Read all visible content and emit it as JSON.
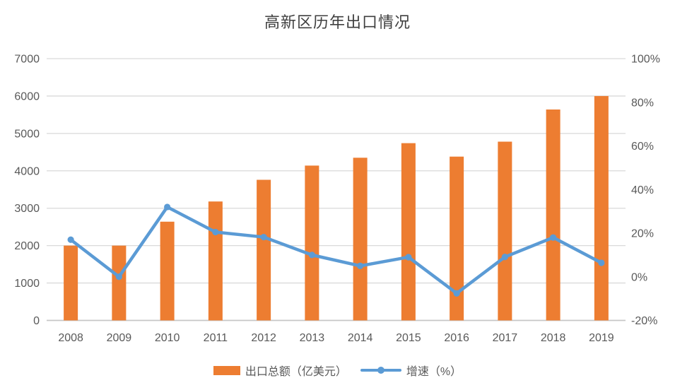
{
  "chart_data": {
    "type": "combo",
    "title": "高新区历年出口情况",
    "categories": [
      "2008",
      "2009",
      "2010",
      "2011",
      "2012",
      "2013",
      "2014",
      "2015",
      "2016",
      "2017",
      "2018",
      "2019"
    ],
    "series": [
      {
        "name": "出口总额（亿美元）",
        "type": "bar",
        "axis": "left",
        "color": "#ED7D31",
        "values": [
          2000,
          2000,
          2640,
          3180,
          3760,
          4140,
          4350,
          4740,
          4380,
          4780,
          5640,
          6000
        ]
      },
      {
        "name": "增速（%）",
        "type": "line",
        "axis": "right",
        "color": "#5B9BD5",
        "values": [
          17,
          0,
          32,
          20.5,
          18.2,
          10,
          5,
          9,
          -7.6,
          9.1,
          18,
          6.4
        ]
      }
    ],
    "left_axis": {
      "min": 0,
      "max": 7000,
      "ticks": [
        0,
        1000,
        2000,
        3000,
        4000,
        5000,
        6000,
        7000
      ]
    },
    "right_axis": {
      "min": -20,
      "max": 100,
      "tick_values": [
        -20,
        0,
        20,
        40,
        60,
        80,
        100
      ],
      "tick_labels": [
        "-20%",
        "0%",
        "20%",
        "40%",
        "60%",
        "80%",
        "100%"
      ]
    },
    "grid": true,
    "legend_position": "bottom",
    "colors": {
      "grid": "#D9D9D9",
      "axis_line": "#C6C6C6",
      "tick_text": "#595959",
      "title_text": "#3F3F3F"
    }
  }
}
